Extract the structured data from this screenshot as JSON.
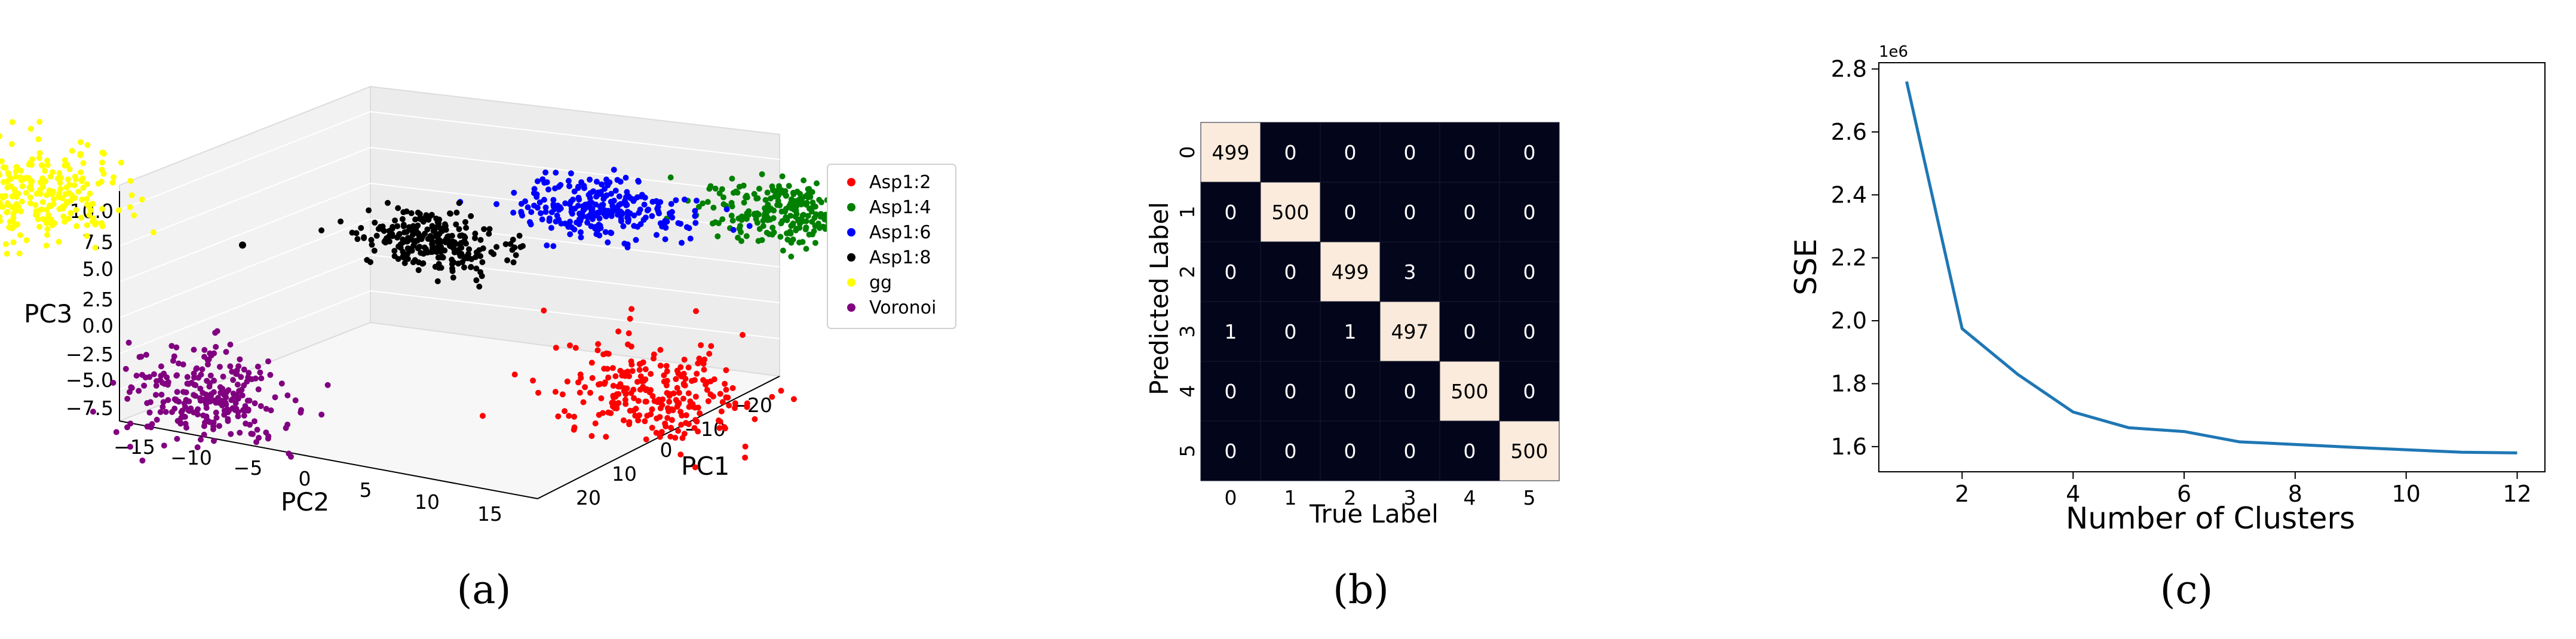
{
  "chart_data": [
    {
      "type": "scatter",
      "projection": "3d",
      "caption": "(a)",
      "xlabel": "PC1",
      "ylabel": "PC2",
      "zlabel": "PC3",
      "xticks": [
        "−20",
        "−10",
        "0",
        "10",
        "20"
      ],
      "yticks": [
        "−15",
        "−10",
        "−5",
        "0",
        "5",
        "10",
        "15"
      ],
      "zticks": [
        "10.0",
        "7.5",
        "5.0",
        "2.5",
        "0.0",
        "−2.5",
        "−5.0",
        "−7.5"
      ],
      "legend_position": "right",
      "series": [
        {
          "name": "Asp1:2",
          "color": "#ff0000",
          "center": {
            "pc1": -5,
            "pc2": 12,
            "pc3": -4
          }
        },
        {
          "name": "Asp1:4",
          "color": "#008000",
          "center": {
            "pc1": -20,
            "pc2": 10,
            "pc3": 8
          }
        },
        {
          "name": "Asp1:6",
          "color": "#0000ff",
          "center": {
            "pc1": -12,
            "pc2": 5,
            "pc3": 8
          }
        },
        {
          "name": "Asp1:8",
          "color": "#000000",
          "center": {
            "pc1": -5,
            "pc2": 0,
            "pc3": 5
          }
        },
        {
          "name": "gg",
          "color": "#ffff00",
          "center": {
            "pc1": 10,
            "pc2": -12,
            "pc3": 8
          }
        },
        {
          "name": "Voronoi",
          "color": "#800080",
          "center": {
            "pc1": 15,
            "pc2": 0,
            "pc3": -5
          }
        }
      ]
    },
    {
      "type": "heatmap",
      "caption": "(b)",
      "xlabel": "True Label",
      "ylabel": "Predicted Label",
      "x_categories": [
        "0",
        "1",
        "2",
        "3",
        "4",
        "5"
      ],
      "y_categories": [
        "0",
        "1",
        "2",
        "3",
        "4",
        "5"
      ],
      "values": [
        [
          499,
          0,
          0,
          0,
          0,
          0
        ],
        [
          0,
          500,
          0,
          0,
          0,
          0
        ],
        [
          0,
          0,
          499,
          3,
          0,
          0
        ],
        [
          1,
          0,
          1,
          497,
          0,
          0
        ],
        [
          0,
          0,
          0,
          0,
          500,
          0
        ],
        [
          0,
          0,
          0,
          0,
          0,
          500
        ]
      ],
      "colors": {
        "high": "#faebdd",
        "low": "#03051a"
      }
    },
    {
      "type": "line",
      "caption": "(c)",
      "xlabel": "Number of Clusters",
      "ylabel": "SSE",
      "y_offset_label": "1e6",
      "x": [
        1,
        2,
        3,
        4,
        5,
        6,
        7,
        8,
        9,
        10,
        11,
        12
      ],
      "series": [
        {
          "values": [
            2.76,
            1.975,
            1.83,
            1.71,
            1.66,
            1.648,
            1.615,
            1.607,
            1.598,
            1.59,
            1.582,
            1.58
          ],
          "color": "#1f77b4"
        }
      ],
      "xticks": [
        "2",
        "4",
        "6",
        "8",
        "10",
        "12"
      ],
      "yticks": [
        "1.6",
        "1.8",
        "2.0",
        "2.2",
        "2.4",
        "2.6",
        "2.8"
      ],
      "xlim": [
        0.5,
        12.5
      ],
      "ylim": [
        1.52,
        2.82
      ]
    }
  ]
}
